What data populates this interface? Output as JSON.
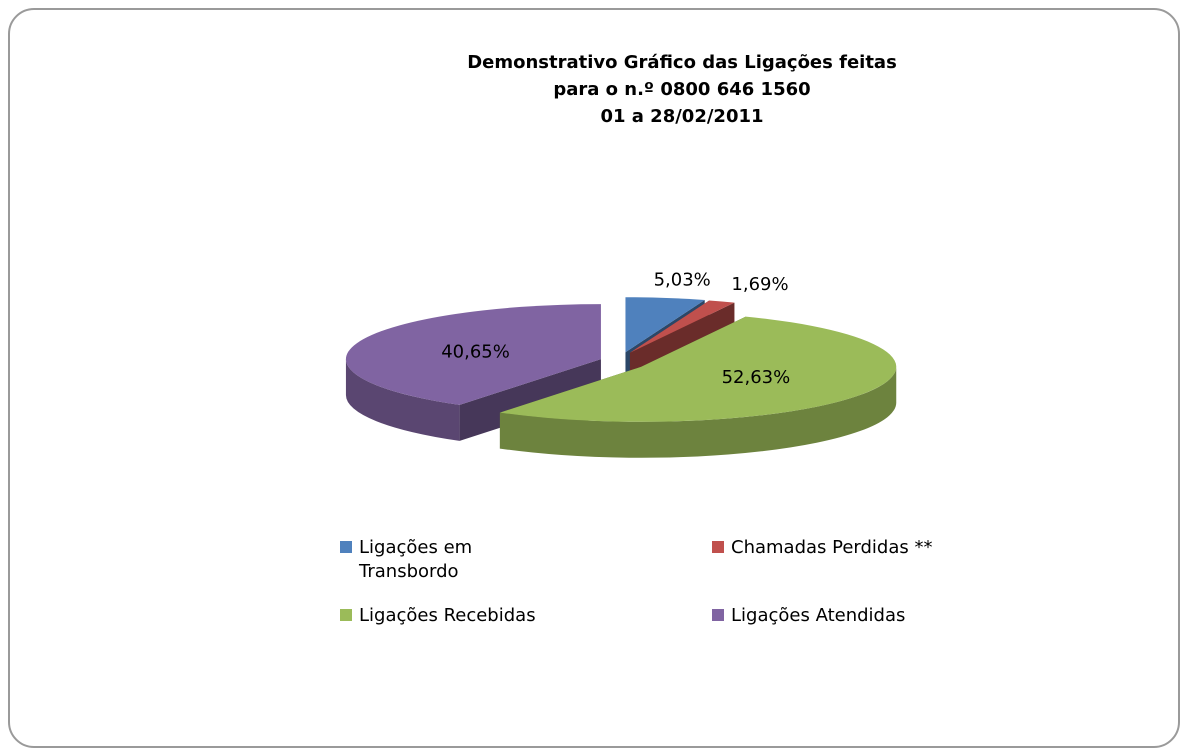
{
  "chart_data": {
    "type": "pie3d",
    "title": [
      "Demonstrativo Gráfico das Ligações feitas",
      "para o n.º 0800 646 1560",
      "01 a  28/02/2011"
    ],
    "categories": [
      "Ligações em Transbordo",
      "Chamadas Perdidas **",
      "Ligações Recebidas",
      "Ligações Atendidas"
    ],
    "values": [
      5.03,
      1.69,
      52.63,
      40.65
    ],
    "value_labels": [
      "5,03%",
      "1,69%",
      "52,63%",
      "40,65%"
    ],
    "colors": [
      "#4f81bd",
      "#c0504d",
      "#9bbb59",
      "#8064a2"
    ]
  }
}
